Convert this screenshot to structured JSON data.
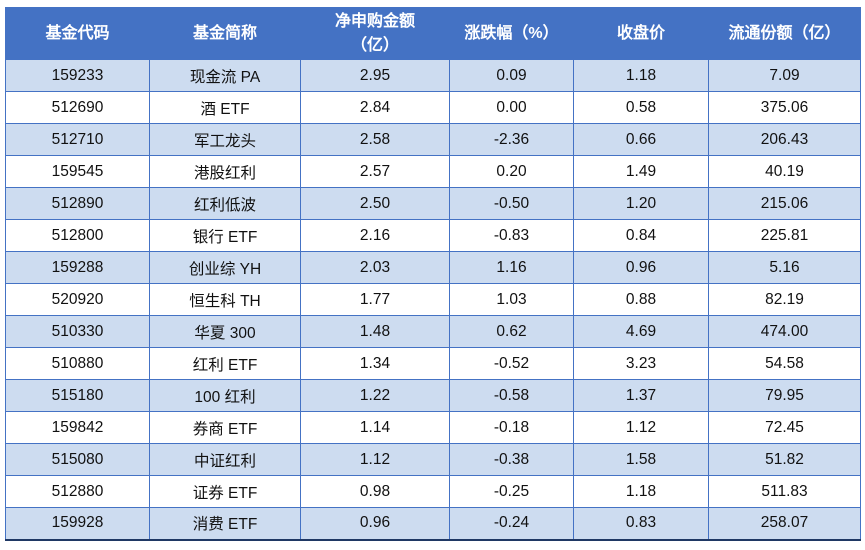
{
  "chart_data": {
    "type": "table",
    "columns": [
      "基金代码",
      "基金简称",
      "净申购金额（亿）",
      "涨跌幅（%）",
      "收盘价",
      "流通份额（亿）"
    ],
    "rows": [
      [
        "159233",
        "现金流 PA",
        "2.95",
        "0.09",
        "1.18",
        "7.09"
      ],
      [
        "512690",
        "酒 ETF",
        "2.84",
        "0.00",
        "0.58",
        "375.06"
      ],
      [
        "512710",
        "军工龙头",
        "2.58",
        "-2.36",
        "0.66",
        "206.43"
      ],
      [
        "159545",
        "港股红利",
        "2.57",
        "0.20",
        "1.49",
        "40.19"
      ],
      [
        "512890",
        "红利低波",
        "2.50",
        "-0.50",
        "1.20",
        "215.06"
      ],
      [
        "512800",
        "银行 ETF",
        "2.16",
        "-0.83",
        "0.84",
        "225.81"
      ],
      [
        "159288",
        "创业综 YH",
        "2.03",
        "1.16",
        "0.96",
        "5.16"
      ],
      [
        "520920",
        "恒生科 TH",
        "1.77",
        "1.03",
        "0.88",
        "82.19"
      ],
      [
        "510330",
        "华夏 300",
        "1.48",
        "0.62",
        "4.69",
        "474.00"
      ],
      [
        "510880",
        "红利 ETF",
        "1.34",
        "-0.52",
        "3.23",
        "54.58"
      ],
      [
        "515180",
        "100 红利",
        "1.22",
        "-0.58",
        "1.37",
        "79.95"
      ],
      [
        "159842",
        "券商 ETF",
        "1.14",
        "-0.18",
        "1.12",
        "72.45"
      ],
      [
        "515080",
        "中证红利",
        "1.12",
        "-0.38",
        "1.58",
        "51.82"
      ],
      [
        "512880",
        "证券 ETF",
        "0.98",
        "-0.25",
        "1.18",
        "511.83"
      ],
      [
        "159928",
        "消费 ETF",
        "0.96",
        "-0.24",
        "0.83",
        "258.07"
      ]
    ],
    "layout": {
      "banded_rows": true,
      "first_band_shaded": true,
      "alignment": "center"
    }
  },
  "header_display": [
    {
      "line1": "基金代码",
      "line2": ""
    },
    {
      "line1": "基金简称",
      "line2": ""
    },
    {
      "line1": "净申购金额",
      "line2": "（亿）"
    },
    {
      "line1": "涨跌幅（%）",
      "line2": ""
    },
    {
      "line1": "收盘价",
      "line2": ""
    },
    {
      "line1": "流通份额（亿）",
      "line2": ""
    }
  ],
  "colors": {
    "header_bg": "#4472C4",
    "header_text": "#FFFFFF",
    "band_row_bg": "#CDDCF0",
    "plain_row_bg": "#FFFFFF",
    "grid_border": "#4472C4",
    "body_text": "#111111",
    "bottom_border": "#1F3864"
  }
}
